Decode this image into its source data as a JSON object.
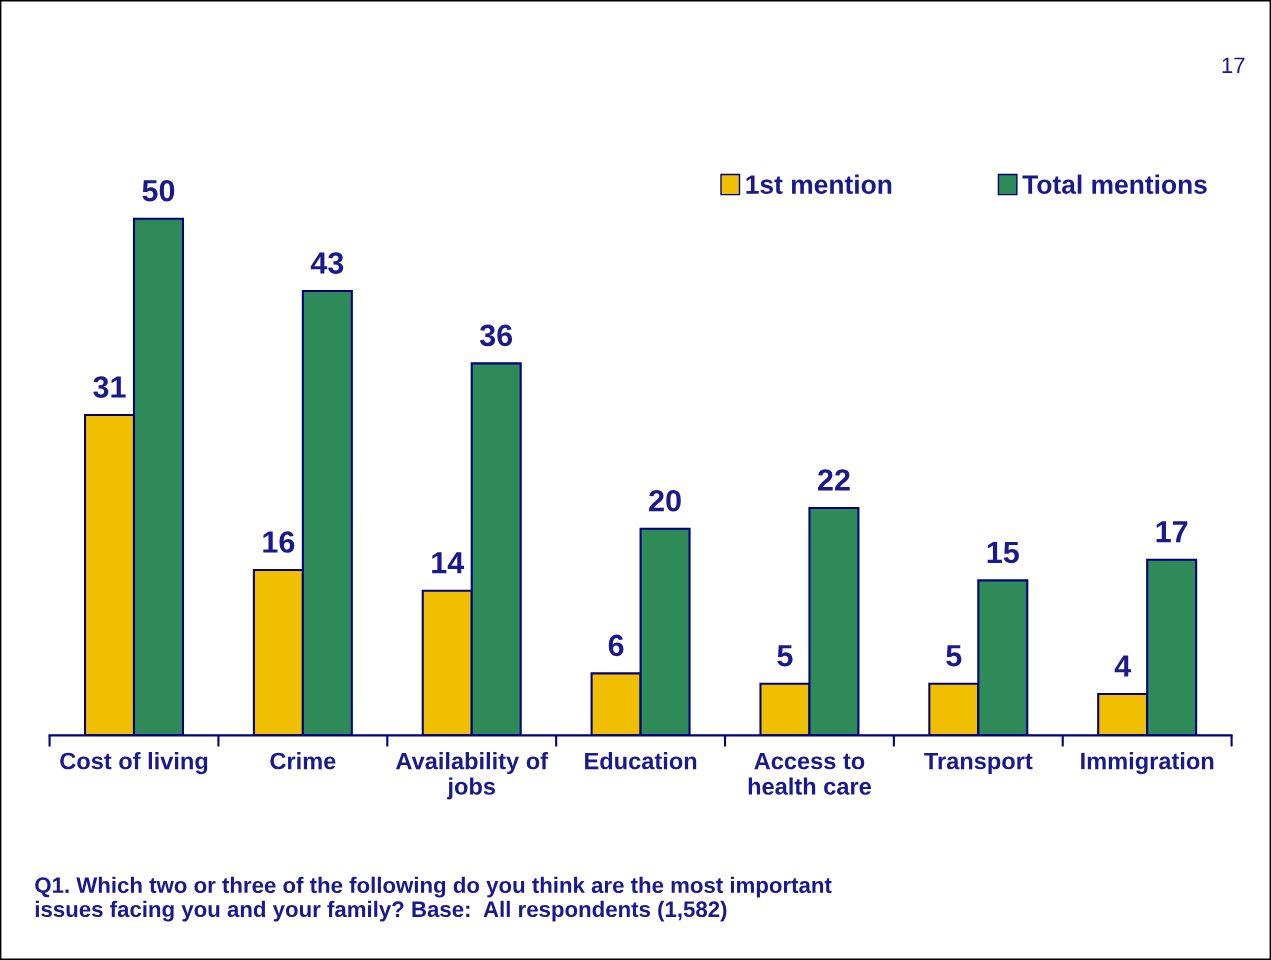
{
  "chart_data": {
    "type": "bar",
    "categories": [
      "Cost of living",
      "Crime",
      "Availability of\njobs",
      "Education",
      "Access to\nhealth care",
      "Transport",
      "Immigration"
    ],
    "series": [
      {
        "name": "1st mention",
        "color": "#f0c000",
        "values": [
          31,
          16,
          14,
          6,
          5,
          5,
          4
        ]
      },
      {
        "name": "Total mentions",
        "color": "#2e8b57",
        "values": [
          50,
          43,
          36,
          20,
          22,
          15,
          17
        ]
      }
    ],
    "data_labels": true,
    "legend": "top right",
    "grid": false,
    "annotations": [
      "17",
      "Q1. Which two or three of the following do you think are the most important\nissues facing you and your family? Base:  All respondents (1,582)"
    ]
  }
}
